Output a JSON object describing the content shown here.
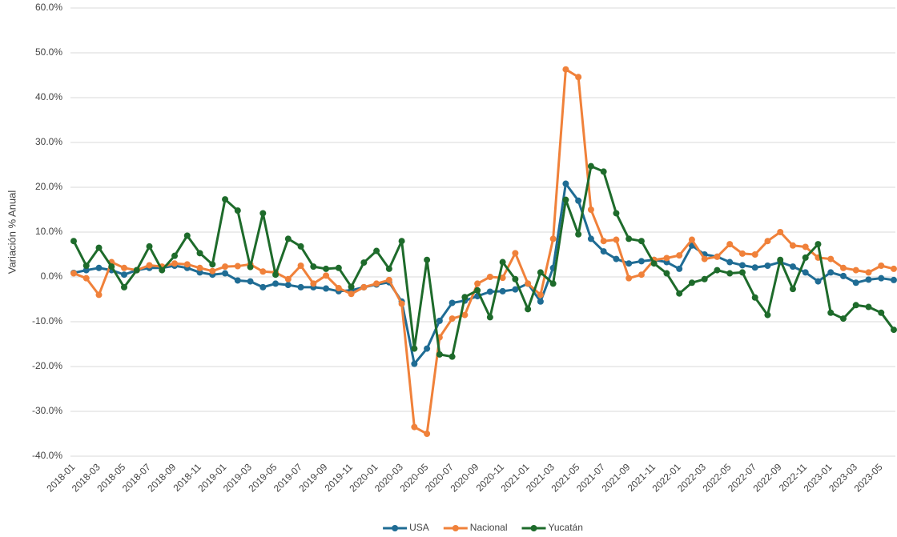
{
  "chart_data": {
    "type": "line",
    "y_label": "Variación % Anual",
    "categories": [
      "2018-01",
      null,
      "2018-03",
      null,
      "2018-05",
      null,
      "2018-07",
      null,
      "2018-09",
      null,
      "2018-11",
      null,
      "2019-01",
      null,
      "2019-03",
      null,
      "2019-05",
      null,
      "2019-07",
      null,
      "2019-09",
      null,
      "2019-11",
      null,
      "2020-01",
      null,
      "2020-03",
      null,
      "2020-05",
      null,
      "2020-07",
      null,
      "2020-09",
      null,
      "2020-11",
      null,
      "2021-01",
      null,
      "2021-03",
      null,
      "2021-05",
      null,
      "2021-07",
      null,
      "2021-09",
      null,
      "2021-11",
      null,
      "2022-01",
      null,
      "2022-03",
      null,
      "2022-05",
      null,
      "2022-07",
      null,
      "2022-09",
      null,
      "2022-11",
      null,
      "2023-01",
      null,
      "2023-03",
      null,
      "2023-05",
      null
    ],
    "ylim": [
      -40,
      60
    ],
    "yticks": [
      {
        "value": -40,
        "label": "-40.0%"
      },
      {
        "value": -30,
        "label": "-30.0%"
      },
      {
        "value": -20,
        "label": "-20.0%"
      },
      {
        "value": -10,
        "label": "-10.0%"
      },
      {
        "value": 0,
        "label": "0.0%"
      },
      {
        "value": 10,
        "label": "10.0%"
      },
      {
        "value": 20,
        "label": "20.0%"
      },
      {
        "value": 30,
        "label": "30.0%"
      },
      {
        "value": 40,
        "label": "40.0%"
      },
      {
        "value": 50,
        "label": "50.0%"
      },
      {
        "value": 60,
        "label": "60.0%"
      }
    ],
    "grid": true,
    "legend": "bottom",
    "series": [
      {
        "name": "USA",
        "color": "#1f6c94",
        "values": [
          0.9,
          1.5,
          2,
          1.5,
          0.5,
          1.5,
          2,
          2,
          2.5,
          2,
          1,
          0.5,
          0.8,
          -0.8,
          -1,
          -2.3,
          -1.5,
          -1.8,
          -2.3,
          -2.3,
          -2.6,
          -3.2,
          -3,
          -2.3,
          -1.7,
          -1.2,
          -5.5,
          -19.4,
          -16,
          -9.8,
          -5.8,
          -5.3,
          -4.3,
          -3.3,
          -3.2,
          -2.8,
          -1.5,
          -5.5,
          2,
          20.8,
          17,
          8.5,
          5.7,
          4,
          3,
          3.5,
          3.8,
          3.3,
          1.8,
          7,
          5,
          4.5,
          3.3,
          2.6,
          2.1,
          2.5,
          3.3,
          2.3,
          1,
          -1,
          1,
          0.2,
          -1.3,
          -0.6,
          -0.3,
          -0.7
        ]
      },
      {
        "name": "Nacional",
        "color": "#f0813a",
        "values": [
          0.8,
          -0.3,
          -4,
          3.3,
          2,
          1.5,
          2.6,
          2.3,
          3,
          2.8,
          2,
          1.3,
          2.3,
          2.4,
          2.8,
          1.2,
          1,
          -0.5,
          2.5,
          -1.5,
          0.3,
          -2.5,
          -3.8,
          -2.3,
          -1.5,
          -0.7,
          -6,
          -33.5,
          -35,
          -13.5,
          -9.3,
          -8.5,
          -1.5,
          0,
          -0.2,
          5.3,
          -1.5,
          -4,
          8.5,
          46.3,
          44.6,
          15,
          8,
          8.3,
          -0.3,
          0.5,
          3.8,
          4.2,
          4.8,
          8.3,
          4,
          4.5,
          7.3,
          5.2,
          5,
          8,
          10,
          7,
          6.7,
          4.3,
          4,
          2,
          1.5,
          1,
          2.5,
          1.8
        ]
      },
      {
        "name": "Yucatán",
        "color": "#1e6b2b",
        "values": [
          8,
          2.5,
          6.5,
          2.3,
          -2.3,
          1.5,
          6.8,
          1.5,
          4.7,
          9.2,
          5.3,
          2.8,
          17.3,
          14.8,
          2.2,
          14.2,
          0.5,
          8.5,
          6.8,
          2.3,
          1.8,
          2,
          -2.2,
          3.2,
          5.8,
          1.8,
          8,
          -16,
          3.8,
          -17.3,
          -17.8,
          -4.5,
          -3,
          -9,
          3.3,
          -0.5,
          -7.2,
          1,
          -1.5,
          17.2,
          9.5,
          24.7,
          23.5,
          14.2,
          8.5,
          8,
          3,
          0.8,
          -3.7,
          -1.3,
          -0.5,
          1.5,
          0.8,
          1,
          -4.6,
          -8.5,
          3.8,
          -2.7,
          4.3,
          7.3,
          -8,
          -9.3,
          -6.3,
          -6.7,
          -8,
          -11.8
        ]
      }
    ]
  }
}
